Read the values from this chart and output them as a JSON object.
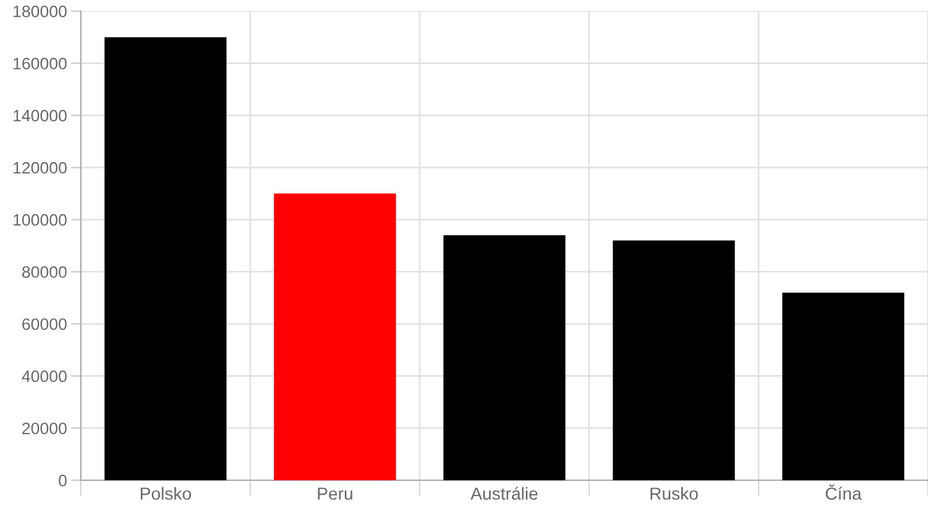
{
  "chart_data": {
    "type": "bar",
    "categories": [
      "Polsko",
      "Peru",
      "Austrálie",
      "Rusko",
      "Čína"
    ],
    "values": [
      170000,
      110000,
      94000,
      92000,
      72000
    ],
    "colors": [
      "#000000",
      "#ff0000",
      "#000000",
      "#000000",
      "#000000"
    ],
    "ylim": [
      0,
      180000
    ],
    "yticks": [
      0,
      20000,
      40000,
      60000,
      80000,
      100000,
      120000,
      140000,
      160000,
      180000
    ],
    "grid": true
  }
}
